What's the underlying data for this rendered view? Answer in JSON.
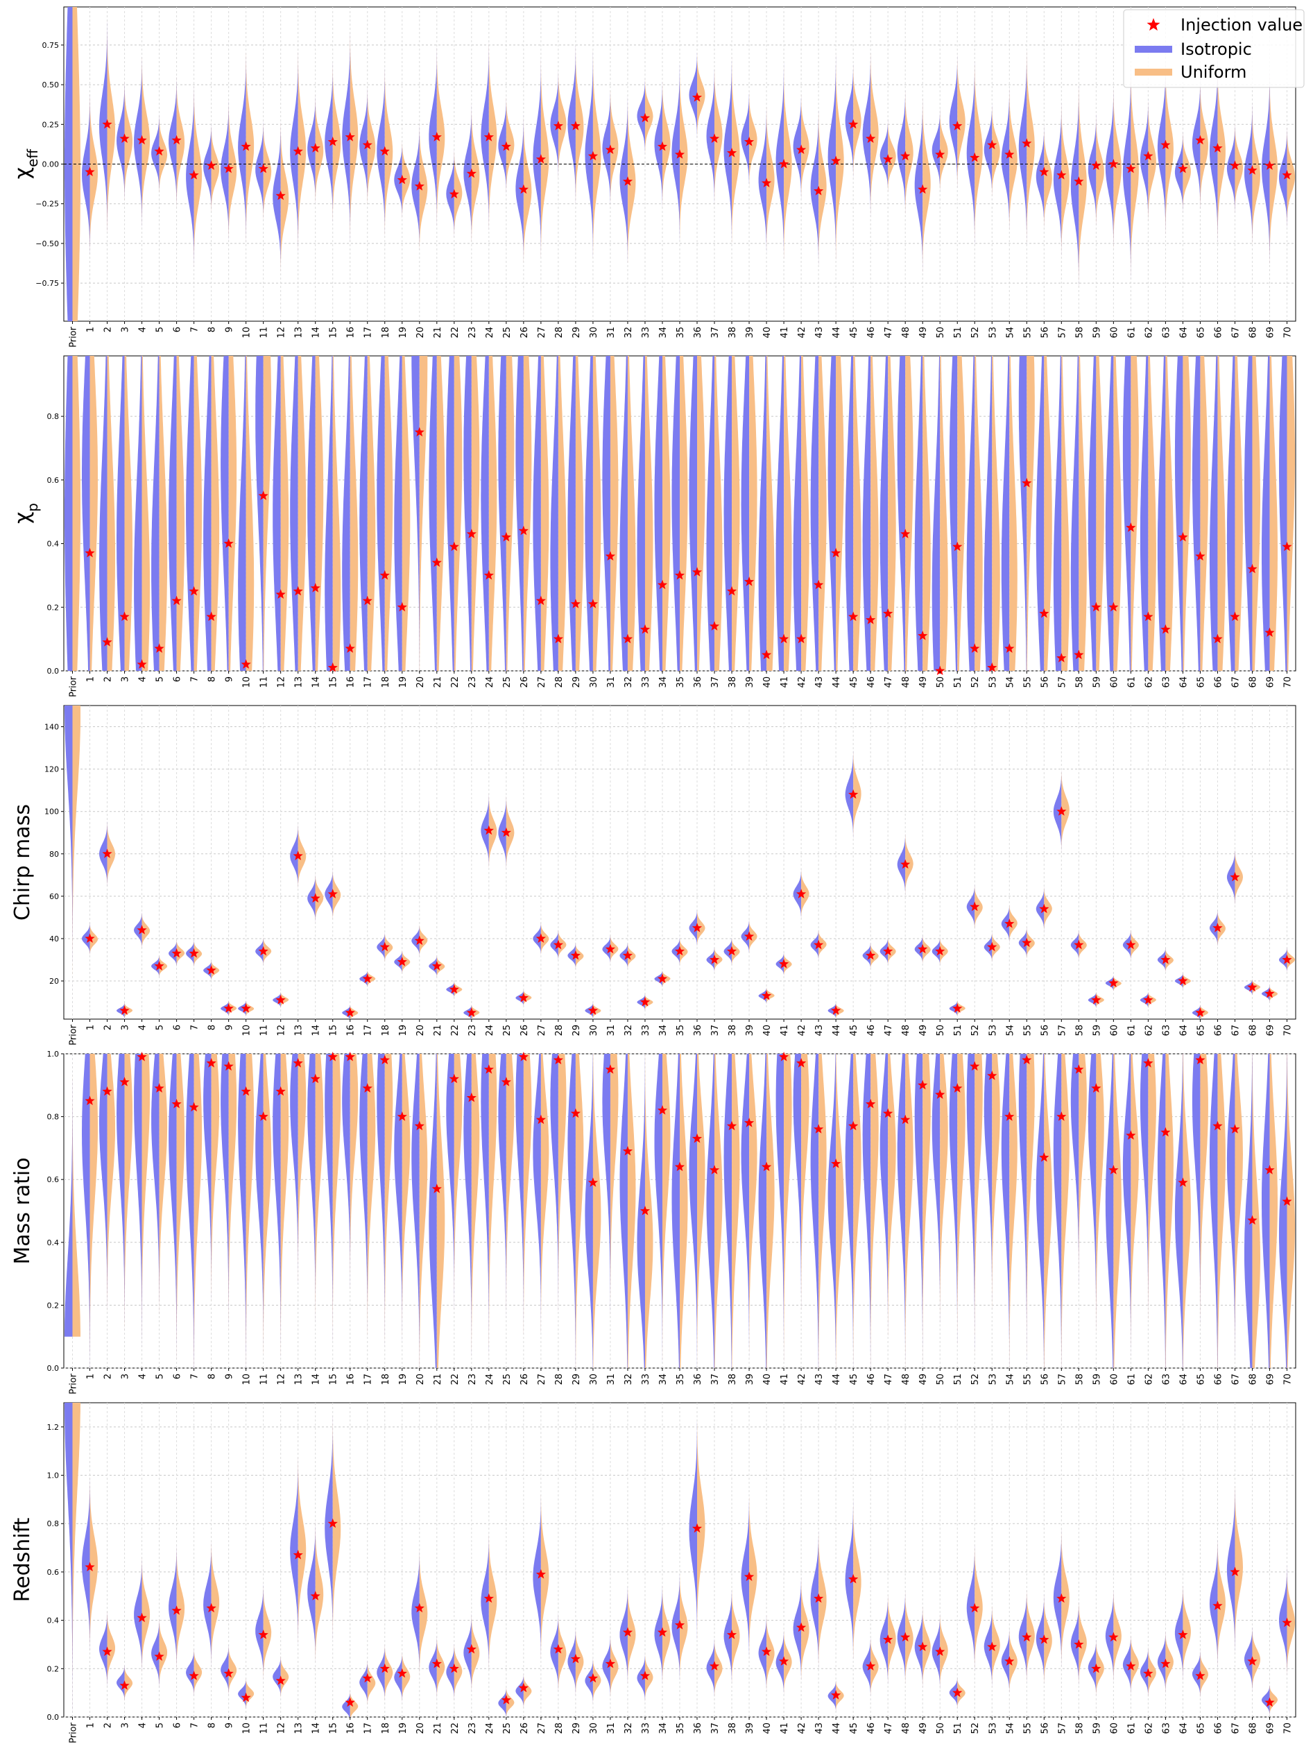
{
  "legend": {
    "entries": [
      {
        "label": "Injection value",
        "color": "#ff0000",
        "marker": "star"
      },
      {
        "label": "Isotropic",
        "color": "#7b7bf0",
        "marker": "line"
      },
      {
        "label": "Uniform",
        "color": "#f8be86",
        "marker": "line"
      }
    ],
    "placement": "upper-right"
  },
  "categories": [
    "Prior",
    "1",
    "2",
    "3",
    "4",
    "5",
    "6",
    "7",
    "8",
    "9",
    "10",
    "11",
    "12",
    "13",
    "14",
    "15",
    "16",
    "17",
    "18",
    "19",
    "20",
    "21",
    "22",
    "23",
    "24",
    "25",
    "26",
    "27",
    "28",
    "29",
    "30",
    "31",
    "32",
    "33",
    "34",
    "35",
    "36",
    "37",
    "38",
    "39",
    "40",
    "41",
    "42",
    "43",
    "44",
    "45",
    "46",
    "47",
    "48",
    "49",
    "50",
    "51",
    "52",
    "53",
    "54",
    "55",
    "56",
    "57",
    "58",
    "59",
    "60",
    "61",
    "62",
    "63",
    "64",
    "65",
    "66",
    "67",
    "68",
    "69",
    "70"
  ],
  "chart_data": [
    {
      "type": "violin",
      "ylabel": "χ_eff",
      "ylabel_main": "χ",
      "ylabel_sub": "eff",
      "ylim": [
        -0.99,
        0.99
      ],
      "yticks": [
        -0.75,
        -0.5,
        -0.25,
        0.0,
        0.25,
        0.5,
        0.75
      ],
      "ytick_labels": [
        "−0.75",
        "−0.50",
        "−0.25",
        "0.00",
        "0.25",
        "0.50",
        "0.75"
      ],
      "reference_line": 0.0,
      "grid": true,
      "injections": [
        -0.05,
        0.25,
        0.16,
        0.15,
        0.08,
        0.15,
        -0.07,
        -0.01,
        -0.03,
        0.11,
        -0.03,
        -0.2,
        0.08,
        0.1,
        0.14,
        0.17,
        0.12,
        0.08,
        -0.1,
        -0.14,
        0.17,
        -0.19,
        -0.06,
        0.17,
        0.11,
        -0.16,
        0.03,
        0.24,
        0.24,
        0.05,
        0.09,
        -0.11,
        0.29,
        0.11,
        0.06,
        0.42,
        0.16,
        0.07,
        0.14,
        -0.12,
        0.0,
        0.09,
        -0.17,
        0.02,
        0.25,
        0.16,
        0.03,
        0.05,
        -0.16,
        0.06,
        0.24,
        0.04,
        0.12,
        0.06,
        0.13,
        -0.05,
        -0.07,
        -0.11,
        -0.01,
        0.0,
        -0.03,
        0.05,
        0.12,
        -0.03,
        0.15,
        0.1,
        -0.01,
        -0.04,
        -0.01,
        -0.07
      ]
    },
    {
      "type": "violin",
      "ylabel": "χ_p",
      "ylabel_main": "χ",
      "ylabel_sub": "p",
      "ylim": [
        0.0,
        0.99
      ],
      "yticks": [
        0.0,
        0.2,
        0.4,
        0.6,
        0.8
      ],
      "ytick_labels": [
        "0.0",
        "0.2",
        "0.4",
        "0.6",
        "0.8"
      ],
      "grid": true,
      "injections": [
        0.37,
        0.09,
        0.17,
        0.02,
        0.07,
        0.22,
        0.25,
        0.17,
        0.4,
        0.02,
        0.55,
        0.24,
        0.25,
        0.26,
        0.01,
        0.07,
        0.22,
        0.3,
        0.2,
        0.75,
        0.34,
        0.39,
        0.43,
        0.3,
        0.42,
        0.44,
        0.22,
        0.1,
        0.21,
        0.21,
        0.36,
        0.1,
        0.13,
        0.27,
        0.3,
        0.31,
        0.14,
        0.25,
        0.28,
        0.05,
        0.1,
        0.1,
        0.27,
        0.37,
        0.17,
        0.16,
        0.18,
        0.43,
        0.11,
        0.0,
        0.39,
        0.07,
        0.01,
        0.07,
        0.59,
        0.18,
        0.04,
        0.05,
        0.2,
        0.2,
        0.45,
        0.17,
        0.13,
        0.42,
        0.36,
        0.1,
        0.17,
        0.32,
        0.12,
        0.39
      ]
    },
    {
      "type": "violin",
      "ylabel": "Chirp mass",
      "ylim": [
        2,
        150
      ],
      "yticks": [
        20,
        40,
        60,
        80,
        100,
        120,
        140
      ],
      "ytick_labels": [
        "20",
        "40",
        "60",
        "80",
        "100",
        "120",
        "140"
      ],
      "grid": true,
      "injections": [
        40,
        80,
        6,
        44,
        27,
        33,
        33,
        25,
        7,
        7,
        34,
        11,
        79,
        59,
        61,
        5,
        21,
        36,
        29,
        39,
        27,
        16,
        5,
        91,
        90,
        12,
        40,
        37,
        32,
        6,
        35,
        32,
        10,
        21,
        34,
        45,
        30,
        34,
        41,
        13,
        28,
        61,
        37,
        6,
        108,
        32,
        34,
        75,
        35,
        34,
        7,
        55,
        36,
        47,
        38,
        54,
        100,
        37,
        11,
        19,
        37,
        11,
        30,
        20,
        5,
        45,
        69,
        17,
        14,
        30
      ]
    },
    {
      "type": "violin",
      "ylabel": "Mass ratio",
      "ylim": [
        0.0,
        1.0
      ],
      "yticks": [
        0.0,
        0.2,
        0.4,
        0.6,
        0.8,
        1.0
      ],
      "ytick_labels": [
        "0.0",
        "0.2",
        "0.4",
        "0.6",
        "0.8",
        "1.0"
      ],
      "grid": true,
      "injections": [
        0.85,
        0.88,
        0.91,
        0.99,
        0.89,
        0.84,
        0.83,
        0.97,
        0.96,
        0.88,
        0.8,
        0.88,
        0.97,
        0.92,
        0.99,
        0.99,
        0.89,
        0.98,
        0.8,
        0.77,
        0.57,
        0.92,
        0.86,
        0.95,
        0.91,
        0.99,
        0.79,
        0.98,
        0.81,
        0.59,
        0.95,
        0.69,
        0.5,
        0.82,
        0.64,
        0.73,
        0.63,
        0.77,
        0.78,
        0.64,
        0.99,
        0.97,
        0.76,
        0.65,
        0.77,
        0.84,
        0.81,
        0.79,
        0.9,
        0.87,
        0.89,
        0.96,
        0.93,
        0.8,
        0.98,
        0.67,
        0.8,
        0.95,
        0.89,
        0.63,
        0.74,
        0.97,
        0.75,
        0.59,
        0.98,
        0.77,
        0.76,
        0.47,
        0.63,
        0.53
      ]
    },
    {
      "type": "violin",
      "ylabel": "Redshift",
      "ylim": [
        0.0,
        1.3
      ],
      "yticks": [
        0.0,
        0.2,
        0.4,
        0.6,
        0.8,
        1.0,
        1.2
      ],
      "ytick_labels": [
        "0.0",
        "0.2",
        "0.4",
        "0.6",
        "0.8",
        "1.0",
        "1.2"
      ],
      "grid": true,
      "injections": [
        0.62,
        0.27,
        0.13,
        0.41,
        0.25,
        0.44,
        0.17,
        0.45,
        0.18,
        0.08,
        0.34,
        0.15,
        0.67,
        0.5,
        0.8,
        0.06,
        0.16,
        0.2,
        0.18,
        0.45,
        0.22,
        0.2,
        0.28,
        0.49,
        0.07,
        0.12,
        0.59,
        0.28,
        0.24,
        0.16,
        0.22,
        0.35,
        0.17,
        0.35,
        0.38,
        0.78,
        0.21,
        0.34,
        0.58,
        0.27,
        0.23,
        0.37,
        0.49,
        0.09,
        0.57,
        0.21,
        0.32,
        0.33,
        0.29,
        0.27,
        0.1,
        0.45,
        0.29,
        0.23,
        0.33,
        0.32,
        0.49,
        0.3,
        0.2,
        0.33,
        0.21,
        0.18,
        0.22,
        0.34,
        0.17,
        0.46,
        0.6,
        0.23,
        0.06,
        0.39
      ]
    }
  ]
}
